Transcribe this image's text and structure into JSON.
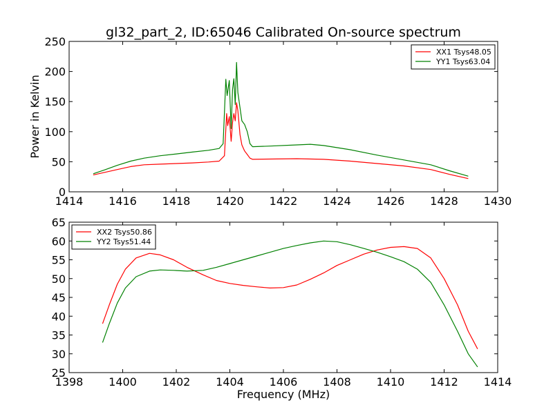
{
  "figure": {
    "title": "gl32_part_2, ID:65046 Calibrated On-source spectrum"
  },
  "chart_data": [
    {
      "type": "line",
      "title": "gl32_part_2, ID:65046 Calibrated On-source spectrum",
      "xlabel": "",
      "ylabel": "Power in Kelvin",
      "xlim": [
        1414,
        1430
      ],
      "ylim": [
        0,
        250
      ],
      "xticks": [
        1414,
        1416,
        1418,
        1420,
        1422,
        1424,
        1426,
        1428,
        1430
      ],
      "yticks": [
        0,
        50,
        100,
        150,
        200,
        250
      ],
      "grid": false,
      "legend_position": "top-right",
      "series": [
        {
          "name": "XX1 Tsys48.05",
          "color": "#ff0000",
          "x": [
            1414.9,
            1415.3,
            1415.8,
            1416.3,
            1416.8,
            1417.4,
            1418.0,
            1418.6,
            1419.2,
            1419.6,
            1419.8,
            1419.88,
            1419.92,
            1419.98,
            1420.05,
            1420.1,
            1420.15,
            1420.2,
            1420.25,
            1420.3,
            1420.38,
            1420.45,
            1420.55,
            1420.65,
            1420.75,
            1420.85,
            1421.5,
            1422.5,
            1423.5,
            1424.5,
            1425.5,
            1426.5,
            1427.5,
            1428.2,
            1428.9
          ],
          "y": [
            28,
            32,
            37,
            42,
            45,
            46,
            47,
            48,
            49.5,
            51,
            60,
            130,
            110,
            125,
            84,
            115,
            130,
            118,
            148,
            135,
            95,
            78,
            68,
            62,
            56,
            54,
            54.5,
            55,
            54,
            51,
            47,
            43,
            37,
            29,
            22
          ]
        },
        {
          "name": "YY1 Tsys63.04",
          "color": "#008000",
          "x": [
            1414.9,
            1415.3,
            1415.8,
            1416.3,
            1416.8,
            1417.4,
            1418.0,
            1418.6,
            1419.2,
            1419.6,
            1419.75,
            1419.85,
            1419.9,
            1419.98,
            1420.05,
            1420.1,
            1420.15,
            1420.2,
            1420.25,
            1420.3,
            1420.38,
            1420.45,
            1420.55,
            1420.65,
            1420.75,
            1420.85,
            1421.5,
            1422.5,
            1423.0,
            1423.5,
            1424.5,
            1425.5,
            1426.5,
            1427.5,
            1428.2,
            1428.9
          ],
          "y": [
            30,
            36,
            44,
            51,
            56,
            60,
            63,
            66,
            69,
            72,
            80,
            187,
            160,
            185,
            105,
            170,
            188,
            145,
            215,
            165,
            140,
            118,
            112,
            100,
            80,
            75,
            76,
            78,
            79,
            77,
            70,
            61,
            53,
            45,
            35,
            26
          ]
        }
      ]
    },
    {
      "type": "line",
      "title": "",
      "xlabel": "Frequency (MHz)",
      "ylabel": "",
      "xlim": [
        1398,
        1414
      ],
      "ylim": [
        25,
        65
      ],
      "xticks": [
        1398,
        1400,
        1402,
        1404,
        1406,
        1408,
        1410,
        1412,
        1414
      ],
      "yticks": [
        25,
        30,
        35,
        40,
        45,
        50,
        55,
        60,
        65
      ],
      "grid": false,
      "legend_position": "top-left",
      "series": [
        {
          "name": "XX2 Tsys50.86",
          "color": "#ff0000",
          "x": [
            1399.25,
            1399.5,
            1399.8,
            1400.1,
            1400.5,
            1401.0,
            1401.4,
            1401.9,
            1402.4,
            1403.0,
            1403.5,
            1404.0,
            1404.5,
            1405.0,
            1405.5,
            1406.0,
            1406.5,
            1407.0,
            1407.5,
            1408.0,
            1408.5,
            1409.0,
            1409.5,
            1410.0,
            1410.5,
            1411.0,
            1411.5,
            1412.0,
            1412.5,
            1412.9,
            1413.25
          ],
          "y": [
            38,
            43,
            48.5,
            52.5,
            55.5,
            56.7,
            56.3,
            55,
            53,
            51,
            49.5,
            48.7,
            48.2,
            47.8,
            47.5,
            47.6,
            48.3,
            49.8,
            51.5,
            53.5,
            55,
            56.5,
            57.6,
            58.3,
            58.5,
            58,
            55.5,
            50,
            43,
            36,
            31.3
          ]
        },
        {
          "name": "YY2 Tsys51.44",
          "color": "#008000",
          "x": [
            1399.25,
            1399.5,
            1399.8,
            1400.1,
            1400.5,
            1401.0,
            1401.4,
            1401.9,
            1402.4,
            1403.0,
            1403.5,
            1404.0,
            1404.5,
            1405.0,
            1405.5,
            1406.0,
            1406.5,
            1407.0,
            1407.5,
            1408.0,
            1408.5,
            1409.0,
            1409.5,
            1410.0,
            1410.5,
            1411.0,
            1411.5,
            1412.0,
            1412.5,
            1412.9,
            1413.25
          ],
          "y": [
            33,
            38,
            43.5,
            47.5,
            50.5,
            52,
            52.3,
            52.2,
            52,
            52.2,
            53,
            54,
            55,
            56,
            57,
            58,
            58.8,
            59.5,
            60,
            59.8,
            59,
            58,
            57,
            55.8,
            54.5,
            52.5,
            49,
            43,
            36,
            30,
            26.5
          ]
        }
      ]
    }
  ]
}
